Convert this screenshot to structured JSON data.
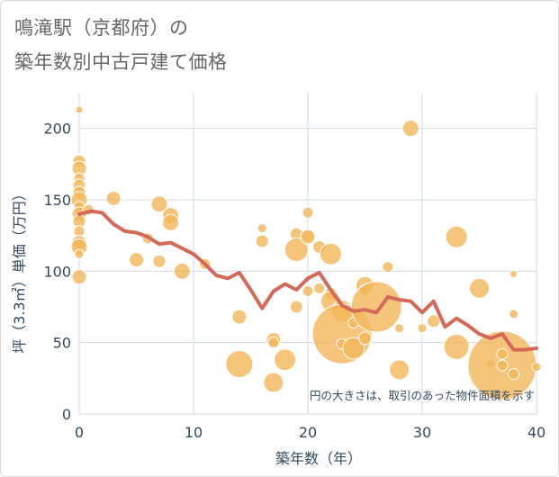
{
  "title_lines": [
    "鳴滝駅（京都府）の",
    "築年数別中古戸建て価格"
  ],
  "colors": {
    "bubble_fill": "#f3b75a",
    "bubble_stroke": "#ffffff",
    "line": "#d4695a",
    "grid": "#cfdbe4",
    "axis_text": "#34495e",
    "title_text": "#666666"
  },
  "chart_data": {
    "type": "scatter",
    "title": "鳴滝駅（京都府）の築年数別中古戸建て価格",
    "xlabel": "築年数（年）",
    "ylabel": "坪（3.3㎡）単価（万円）",
    "xlim": [
      0,
      40
    ],
    "ylim": [
      0,
      225
    ],
    "x_ticks": [
      0,
      10,
      20,
      30,
      40
    ],
    "y_ticks": [
      0,
      50,
      100,
      150,
      200
    ],
    "grid": true,
    "annotation": "円の大きさは、取引のあった物件面積を示す",
    "series": [
      {
        "type": "line",
        "points": [
          [
            0,
            140
          ],
          [
            1,
            142
          ],
          [
            2,
            141
          ],
          [
            3,
            133
          ],
          [
            4,
            128
          ],
          [
            5,
            127
          ],
          [
            6,
            124
          ],
          [
            7,
            119
          ],
          [
            8,
            120
          ],
          [
            9,
            116
          ],
          [
            10,
            112
          ],
          [
            11,
            105
          ],
          [
            12,
            97
          ],
          [
            13,
            95
          ],
          [
            14,
            99
          ],
          [
            15,
            87
          ],
          [
            16,
            74
          ],
          [
            17,
            86
          ],
          [
            18,
            91
          ],
          [
            19,
            87
          ],
          [
            20,
            95
          ],
          [
            21,
            99
          ],
          [
            22,
            87
          ],
          [
            23,
            76
          ],
          [
            24,
            72
          ],
          [
            25,
            73
          ],
          [
            26,
            71
          ],
          [
            27,
            82
          ],
          [
            28,
            80
          ],
          [
            29,
            79
          ],
          [
            30,
            71
          ],
          [
            31,
            79
          ],
          [
            32,
            61
          ],
          [
            33,
            67
          ],
          [
            34,
            62
          ],
          [
            35,
            56
          ],
          [
            36,
            53
          ],
          [
            37,
            56
          ],
          [
            38,
            45
          ],
          [
            39,
            45
          ],
          [
            40,
            46
          ]
        ]
      },
      {
        "type": "bubble",
        "points": [
          [
            0,
            213,
            4
          ],
          [
            0,
            177,
            7
          ],
          [
            0,
            172,
            8
          ],
          [
            0,
            165,
            6
          ],
          [
            0,
            160,
            7
          ],
          [
            0,
            155,
            7
          ],
          [
            0,
            150,
            9
          ],
          [
            0,
            145,
            6
          ],
          [
            0,
            140,
            8
          ],
          [
            0,
            135,
            7
          ],
          [
            0,
            128,
            6
          ],
          [
            0,
            120,
            8
          ],
          [
            0,
            117,
            9
          ],
          [
            0,
            112,
            5
          ],
          [
            0,
            96,
            8
          ],
          [
            0.8,
            143,
            6
          ],
          [
            3,
            151,
            8
          ],
          [
            5,
            108,
            8
          ],
          [
            6,
            123,
            6
          ],
          [
            7,
            147,
            9
          ],
          [
            7,
            107,
            7
          ],
          [
            8,
            139,
            9
          ],
          [
            8,
            134,
            9
          ],
          [
            9,
            100,
            9
          ],
          [
            11,
            105,
            6
          ],
          [
            14,
            68,
            8
          ],
          [
            14,
            35,
            15
          ],
          [
            16,
            130,
            5
          ],
          [
            16,
            121,
            7
          ],
          [
            17,
            52,
            8
          ],
          [
            17,
            50,
            6
          ],
          [
            17,
            22,
            11
          ],
          [
            18,
            38,
            12
          ],
          [
            19,
            126,
            7
          ],
          [
            19,
            115,
            13
          ],
          [
            19,
            75,
            7
          ],
          [
            20,
            141,
            6
          ],
          [
            20,
            125,
            7
          ],
          [
            20,
            124,
            8
          ],
          [
            20,
            86,
            6
          ],
          [
            21,
            117,
            7
          ],
          [
            21,
            88,
            6
          ],
          [
            22,
            112,
            12
          ],
          [
            22,
            84,
            7
          ],
          [
            22,
            79,
            11
          ],
          [
            23,
            72,
            12
          ],
          [
            23,
            56,
            33
          ],
          [
            23,
            49,
            6
          ],
          [
            24,
            46,
            12
          ],
          [
            24,
            64,
            6
          ],
          [
            25,
            90,
            10
          ],
          [
            25,
            87,
            6
          ],
          [
            25,
            53,
            7
          ],
          [
            26,
            75,
            28
          ],
          [
            27,
            103,
            6
          ],
          [
            28,
            31,
            11
          ],
          [
            28,
            60,
            5
          ],
          [
            29,
            200,
            9
          ],
          [
            30,
            60,
            5
          ],
          [
            31,
            65,
            7
          ],
          [
            33,
            124,
            12
          ],
          [
            33,
            47,
            14
          ],
          [
            35,
            88,
            11
          ],
          [
            36,
            35,
            5
          ],
          [
            37,
            34,
            38
          ],
          [
            37,
            42,
            6
          ],
          [
            37,
            34,
            6
          ],
          [
            38,
            98,
            4
          ],
          [
            38,
            70,
            5
          ],
          [
            38,
            28,
            6
          ],
          [
            40,
            33,
            5
          ]
        ]
      }
    ]
  }
}
